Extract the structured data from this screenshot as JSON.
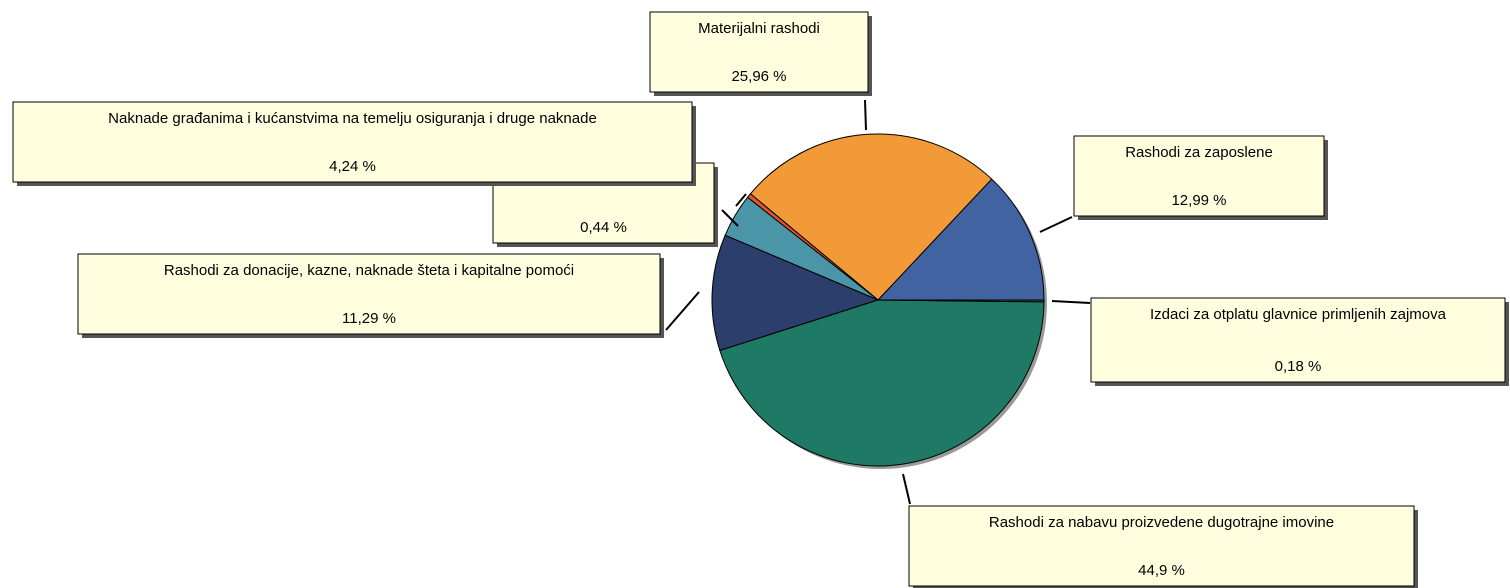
{
  "chart_data": {
    "type": "pie",
    "categories": [
      "Rashodi za zaposlene",
      "Materijalni rashodi",
      null,
      "Naknade građanima i kućanstvima na temelju osiguranja i druge naknade",
      "Rashodi za donacije, kazne, naknade šteta i kapitalne pomoći",
      "Rashodi za nabavu proizvedene dugotrajne imovine",
      "Izdaci za otplatu glavnice primljenih zajmova"
    ],
    "values": [
      12.99,
      25.96,
      0.44,
      4.24,
      11.29,
      44.9,
      0.18
    ],
    "value_labels": [
      "12,99 %",
      "25,96 %",
      "0,44 %",
      "4,24 %",
      "11,29 %",
      "44,9 %",
      "0,18 %"
    ],
    "colors": [
      "#4163a1",
      "#f29a38",
      "#e0582a",
      "#4a96a8",
      "#2c3e6c",
      "#1e7a64",
      "#245f52"
    ]
  }
}
